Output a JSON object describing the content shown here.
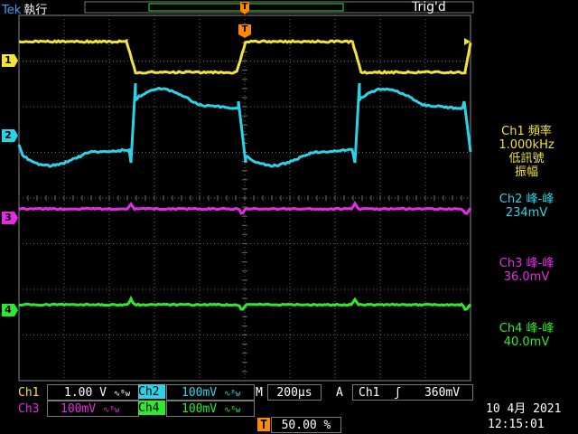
{
  "header": {
    "brand": "Tek",
    "mode": "執行",
    "trigger_status": "Trig'd",
    "trigger_marker": "T"
  },
  "channel_markers": {
    "ch1": "1",
    "ch2": "2",
    "ch3": "3",
    "ch4": "4"
  },
  "measurements": [
    {
      "title": "Ch1 頻率",
      "value": "1.000kHz",
      "note1": "低訊號",
      "note2": "振幅"
    },
    {
      "title": "Ch2 峰-峰",
      "value": "234mV"
    },
    {
      "title": "Ch3 峰-峰",
      "value": "36.0mV"
    },
    {
      "title": "Ch4 峰-峰",
      "value": "40.0mV"
    }
  ],
  "bottom": {
    "ch1_label": "Ch1",
    "ch1_scale": "1.00 V",
    "ch2_label": "Ch2",
    "ch2_scale": "100mV",
    "ch3_label": "Ch3",
    "ch3_scale": "100mV",
    "ch4_label": "Ch4",
    "ch4_scale": "100mV",
    "bw_symbol": "∿ᴮw",
    "timebase_label": "M",
    "timebase_value": "200µs",
    "trigger_mode": "A",
    "trigger_source": "Ch1",
    "trigger_slope": "ʃ",
    "trigger_level": "360mV",
    "trigger_pos_label": "T",
    "trigger_position": "50.00 %",
    "date": "10 4月  2021",
    "time": "12:15:01"
  },
  "colors": {
    "ch1": "#f5e23a",
    "ch2": "#2ad3e8",
    "ch3": "#e62be6",
    "ch4": "#2dea2d",
    "trigger": "#ff8a00",
    "grid": "#6a6a6a"
  }
}
